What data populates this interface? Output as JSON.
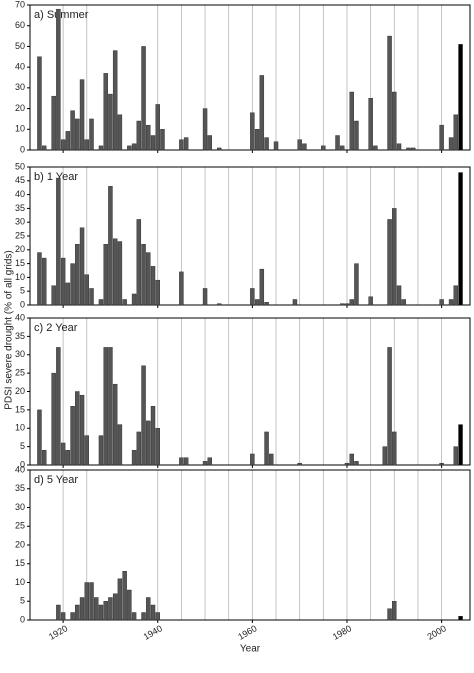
{
  "years": [
    1915,
    1916,
    1917,
    1918,
    1919,
    1920,
    1921,
    1922,
    1923,
    1924,
    1925,
    1926,
    1927,
    1928,
    1929,
    1930,
    1931,
    1932,
    1933,
    1934,
    1935,
    1936,
    1937,
    1938,
    1939,
    1940,
    1941,
    1942,
    1943,
    1944,
    1945,
    1946,
    1947,
    1948,
    1949,
    1950,
    1951,
    1952,
    1953,
    1954,
    1955,
    1956,
    1957,
    1958,
    1959,
    1960,
    1961,
    1962,
    1963,
    1964,
    1965,
    1966,
    1967,
    1968,
    1969,
    1970,
    1971,
    1972,
    1973,
    1974,
    1975,
    1976,
    1977,
    1978,
    1979,
    1980,
    1981,
    1982,
    1983,
    1984,
    1985,
    1986,
    1987,
    1988,
    1989,
    1990,
    1991,
    1992,
    1993,
    1994,
    1995,
    1996,
    1997,
    1998,
    1999,
    2000,
    2001,
    2002,
    2003,
    2004
  ],
  "xlim": [
    1913,
    2006
  ],
  "xticks": [
    1920,
    1940,
    1960,
    1980,
    2000
  ],
  "xgrid": [
    1920,
    1925,
    1940,
    1945,
    1950,
    1955,
    1960,
    1965,
    1970,
    1975,
    1980,
    1985,
    1990,
    1995,
    2000
  ],
  "xlabel": "Year",
  "ylabel": "PDSI severe drought (% of all grids)",
  "chart_data": [
    {
      "type": "bar",
      "title": "a) Summer",
      "color": "#555555",
      "last_bar_color": "#000000",
      "ylim": [
        0,
        70
      ],
      "yticks": [
        0,
        10,
        20,
        30,
        40,
        50,
        60,
        70
      ],
      "values": [
        45,
        2,
        0,
        26,
        68,
        5,
        9,
        19,
        15,
        34,
        5,
        15,
        0,
        2,
        37,
        27,
        48,
        17,
        0,
        2,
        3,
        14,
        50,
        12,
        7,
        22,
        10,
        0,
        0,
        0,
        5,
        6,
        0,
        0,
        0,
        20,
        7,
        0,
        1,
        0,
        0,
        0,
        0,
        0,
        0,
        18,
        10,
        36,
        6,
        0,
        4,
        0,
        0,
        0,
        0,
        5,
        3,
        0,
        0,
        0,
        2,
        0,
        0,
        7,
        2,
        0,
        28,
        14,
        0,
        0,
        25,
        2,
        0,
        0,
        55,
        28,
        3,
        0,
        1,
        1,
        0,
        0,
        0,
        0,
        0,
        12,
        0,
        6,
        17,
        51
      ]
    },
    {
      "type": "bar",
      "title": "b) 1 Year",
      "color": "#555555",
      "last_bar_color": "#000000",
      "ylim": [
        0,
        50
      ],
      "yticks": [
        0,
        5,
        10,
        15,
        20,
        25,
        30,
        35,
        40,
        45,
        50
      ],
      "values": [
        19,
        17,
        0,
        7,
        46,
        17,
        8,
        15,
        22,
        28,
        11,
        6,
        0,
        2,
        22,
        43,
        24,
        23,
        2,
        0,
        4,
        31,
        22,
        19,
        14,
        9,
        0,
        0,
        0,
        0,
        12,
        0,
        0,
        0,
        0,
        6,
        0,
        0,
        0.5,
        0,
        0,
        0,
        0,
        0,
        0,
        6,
        2,
        13,
        1,
        0,
        0,
        0,
        0,
        0,
        2,
        0,
        0,
        0,
        0,
        0,
        0,
        0,
        0,
        0,
        0.5,
        0.5,
        2,
        15,
        0,
        0,
        3,
        0,
        0,
        0,
        31,
        35,
        7,
        2,
        0,
        0,
        0,
        0,
        0,
        0,
        0,
        2,
        0,
        2,
        7,
        48
      ]
    },
    {
      "type": "bar",
      "title": "c) 2 Year",
      "color": "#555555",
      "last_bar_color": "#000000",
      "ylim": [
        0,
        40
      ],
      "yticks": [
        0,
        5,
        10,
        15,
        20,
        25,
        30,
        35,
        40
      ],
      "values": [
        15,
        4,
        0,
        25,
        32,
        6,
        4,
        16,
        20,
        19,
        8,
        0,
        0,
        8,
        32,
        32,
        22,
        11,
        0,
        0,
        4,
        9,
        27,
        12,
        16,
        10,
        0,
        0,
        0,
        0,
        2,
        2,
        0,
        0,
        0,
        1,
        2,
        0,
        0,
        0,
        0,
        0,
        0,
        0,
        0,
        3,
        0,
        0,
        9,
        3,
        0,
        0,
        0,
        0,
        0,
        0.5,
        0,
        0,
        0,
        0,
        0,
        0,
        0,
        0,
        0,
        0.5,
        3,
        1,
        0,
        0,
        0,
        0,
        0,
        5,
        32,
        9,
        0,
        0,
        0,
        0,
        0,
        0,
        0,
        0,
        0,
        0.5,
        0,
        0,
        5,
        11
      ]
    },
    {
      "type": "bar",
      "title": "d) 5 Year",
      "color": "#555555",
      "last_bar_color": "#000000",
      "ylim": [
        0,
        40
      ],
      "yticks": [
        0,
        5,
        10,
        15,
        20,
        25,
        30,
        35,
        40
      ],
      "values": [
        0,
        0,
        0,
        0,
        4,
        2,
        0,
        2,
        4,
        6,
        10,
        10,
        6,
        4,
        5,
        6,
        7,
        11,
        13,
        8,
        2,
        0,
        2,
        6,
        4,
        2,
        0,
        0,
        0,
        0,
        0,
        0,
        0,
        0,
        0,
        0,
        0,
        0,
        0,
        0,
        0,
        0,
        0,
        0,
        0,
        0,
        0,
        0,
        0,
        0,
        0,
        0,
        0,
        0,
        0,
        0,
        0,
        0,
        0,
        0,
        0,
        0,
        0,
        0,
        0,
        0,
        0,
        0,
        0,
        0,
        0,
        0,
        0,
        0,
        3,
        5,
        0,
        0,
        0,
        0,
        0,
        0,
        0,
        0,
        0,
        0,
        0,
        0,
        0,
        1
      ]
    }
  ]
}
